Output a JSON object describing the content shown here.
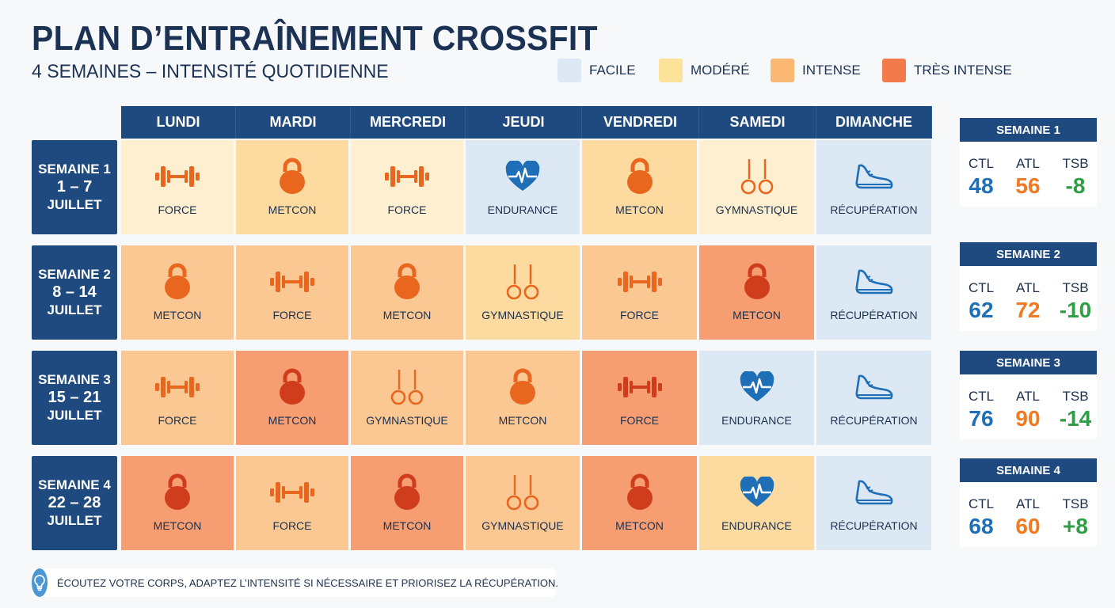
{
  "title": "PLAN D’ENTRAÎNEMENT CROSSFIT",
  "subtitle": "4 SEMAINES – INTENSITÉ QUOTIDIENNE",
  "legend": [
    {
      "label": "FACILE",
      "color": "#dce9f4"
    },
    {
      "label": "MODÉRÉ",
      "color": "#fde29a"
    },
    {
      "label": "INTENSE",
      "color": "#fbb874"
    },
    {
      "label": "TRÈS INTENSE",
      "color": "#f27a4b"
    }
  ],
  "days": [
    "LUNDI",
    "MARDI",
    "MERCREDI",
    "JEUDI",
    "VENDREDI",
    "SAMEDI",
    "DIMANCHE"
  ],
  "intensity_colors": {
    "facile": "#dce9f4",
    "leger": "#fdefcf",
    "modere": "#fddba0",
    "intense": "#fbc894",
    "tres_intense": "#f69d71"
  },
  "icon_colors": {
    "orange": "#e8661e",
    "red": "#d03d1c",
    "blue": "#1e6fb8"
  },
  "weeks": [
    {
      "label": "SEMAINE 1",
      "dates": "1 – 7",
      "month": "JUILLET",
      "days": [
        {
          "activity": "FORCE",
          "icon": "barbell-icon",
          "intensity": "leger"
        },
        {
          "activity": "METCON",
          "icon": "kettlebell-icon",
          "intensity": "modere"
        },
        {
          "activity": "FORCE",
          "icon": "barbell-icon",
          "intensity": "leger"
        },
        {
          "activity": "ENDURANCE",
          "icon": "heart-icon",
          "intensity": "facile"
        },
        {
          "activity": "METCON",
          "icon": "kettlebell-icon",
          "intensity": "modere"
        },
        {
          "activity": "GYMNASTIQUE",
          "icon": "rings-icon",
          "intensity": "leger"
        },
        {
          "activity": "RÉCUPÉRATION",
          "icon": "shoe-icon",
          "intensity": "facile"
        }
      ],
      "stats": {
        "ctl": "48",
        "atl": "56",
        "tsb": "-8"
      }
    },
    {
      "label": "SEMAINE 2",
      "dates": "8 – 14",
      "month": "JUILLET",
      "days": [
        {
          "activity": "METCON",
          "icon": "kettlebell-icon",
          "intensity": "intense"
        },
        {
          "activity": "FORCE",
          "icon": "barbell-icon",
          "intensity": "intense"
        },
        {
          "activity": "METCON",
          "icon": "kettlebell-icon",
          "intensity": "intense"
        },
        {
          "activity": "GYMNASTIQUE",
          "icon": "rings-icon",
          "intensity": "modere"
        },
        {
          "activity": "FORCE",
          "icon": "barbell-icon",
          "intensity": "intense"
        },
        {
          "activity": "METCON",
          "icon": "kettlebell-icon",
          "intensity": "tres_intense"
        },
        {
          "activity": "RÉCUPÉRATION",
          "icon": "shoe-icon",
          "intensity": "facile"
        }
      ],
      "stats": {
        "ctl": "62",
        "atl": "72",
        "tsb": "-10"
      }
    },
    {
      "label": "SEMAINE 3",
      "dates": "15 – 21",
      "month": "JUILLET",
      "days": [
        {
          "activity": "FORCE",
          "icon": "barbell-icon",
          "intensity": "intense"
        },
        {
          "activity": "METCON",
          "icon": "kettlebell-icon",
          "intensity": "tres_intense"
        },
        {
          "activity": "GYMNASTIQUE",
          "icon": "rings-icon",
          "intensity": "intense"
        },
        {
          "activity": "METCON",
          "icon": "kettlebell-icon",
          "intensity": "intense"
        },
        {
          "activity": "FORCE",
          "icon": "barbell-icon",
          "intensity": "tres_intense"
        },
        {
          "activity": "ENDURANCE",
          "icon": "heart-icon",
          "intensity": "facile"
        },
        {
          "activity": "RÉCUPÉRATION",
          "icon": "shoe-icon",
          "intensity": "facile"
        }
      ],
      "stats": {
        "ctl": "76",
        "atl": "90",
        "tsb": "-14"
      }
    },
    {
      "label": "SEMAINE 4",
      "dates": "22 – 28",
      "month": "JUILLET",
      "days": [
        {
          "activity": "METCON",
          "icon": "kettlebell-icon",
          "intensity": "tres_intense"
        },
        {
          "activity": "FORCE",
          "icon": "barbell-icon",
          "intensity": "intense"
        },
        {
          "activity": "METCON",
          "icon": "kettlebell-icon",
          "intensity": "tres_intense"
        },
        {
          "activity": "GYMNASTIQUE",
          "icon": "rings-icon",
          "intensity": "intense"
        },
        {
          "activity": "METCON",
          "icon": "kettlebell-icon",
          "intensity": "tres_intense"
        },
        {
          "activity": "ENDURANCE",
          "icon": "heart-icon",
          "intensity": "modere"
        },
        {
          "activity": "RÉCUPÉRATION",
          "icon": "shoe-icon",
          "intensity": "facile"
        }
      ],
      "stats": {
        "ctl": "68",
        "atl": "60",
        "tsb": "+8"
      }
    }
  ],
  "stat_labels": {
    "ctl": "CTL",
    "atl": "ATL",
    "tsb": "TSB"
  },
  "stat_colors": {
    "ctl": "#1e6fb8",
    "atl": "#ef7a22",
    "tsb": "#2f9e44"
  },
  "tip": {
    "text": "ÉCOUTEZ VOTRE CORPS, ADAPTEZ L’INTENSITÉ SI NÉCESSAIRE ET PRIORISEZ LA RÉCUPÉRATION.",
    "icon": "lightbulb-icon"
  }
}
